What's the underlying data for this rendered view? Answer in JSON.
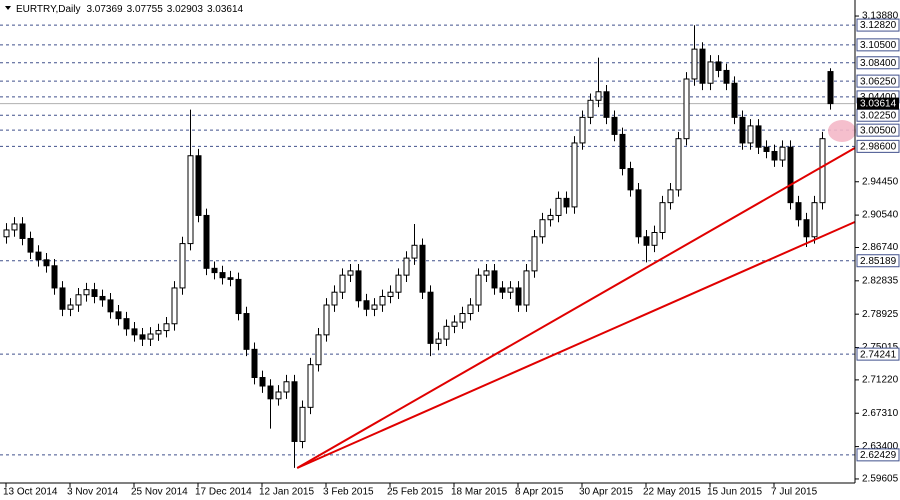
{
  "chart_data": {
    "type": "candlestick",
    "title": "EURTRY,Daily",
    "xlim": [
      -0.75,
      106.125
    ],
    "ylim": [
      2.5913,
      3.1576
    ],
    "xticks": [
      {
        "value": 0,
        "label": "13 Oct 2014"
      },
      {
        "value": 8,
        "label": "3 Nov 2014"
      },
      {
        "value": 16,
        "label": "25 Nov 2014"
      },
      {
        "value": 24,
        "label": "17 Dec 2014"
      },
      {
        "value": 32,
        "label": "12 Jan 2015"
      },
      {
        "value": 40,
        "label": "3 Feb 2015"
      },
      {
        "value": 48,
        "label": "25 Feb 2015"
      },
      {
        "value": 56,
        "label": "18 Mar 2015"
      },
      {
        "value": 64,
        "label": "8 Apr 2015"
      },
      {
        "value": 72,
        "label": "30 Apr 2015"
      },
      {
        "value": 80,
        "label": "22 May 2015"
      },
      {
        "value": 88,
        "label": "15 Jun 2015"
      },
      {
        "value": 96,
        "label": "7 Jul 2015"
      }
    ],
    "yticks": [
      {
        "value": 3.1388,
        "label": "3.13880"
      },
      {
        "value": 2.9445,
        "label": "2.94450"
      },
      {
        "value": 2.9054,
        "label": "2.90540"
      },
      {
        "value": 2.8674,
        "label": "2.86740"
      },
      2.82835,
      2.78925,
      2.75015,
      {
        "value": 2.7122,
        "label": "2.71220"
      },
      {
        "value": 2.6731,
        "label": "2.67310"
      },
      {
        "value": 2.634,
        "label": "2.63400"
      },
      2.59605
    ],
    "levels": [
      {
        "value": 3.1282,
        "label": "3.12820"
      },
      {
        "value": 3.105,
        "label": "3.10500"
      },
      {
        "value": 3.084,
        "label": "3.08400"
      },
      {
        "value": 3.0625,
        "label": "3.06250"
      },
      {
        "value": 3.044,
        "label": "3.04400"
      },
      {
        "value": 3.0225,
        "label": "3.02250"
      },
      {
        "value": 3.005,
        "label": "3.00500"
      },
      {
        "value": 2.986,
        "label": "2.98600"
      },
      2.85189,
      2.74241,
      2.62429
    ],
    "level_color": "#40508c",
    "bull_color": "#ffffff",
    "bear_color": "#000000",
    "candles": {
      "open": [
        2.88,
        2.888,
        2.895,
        2.878,
        2.862,
        2.853,
        2.846,
        2.82,
        2.795,
        2.8,
        2.812,
        2.818,
        2.81,
        2.806,
        2.792,
        2.784,
        2.772,
        2.765,
        2.76,
        2.766,
        2.77,
        2.778,
        2.82,
        2.872,
        2.975,
        2.905,
        2.843,
        2.838,
        2.832,
        2.83,
        2.79,
        2.748,
        2.715,
        2.705,
        2.69,
        2.698,
        2.71,
        2.64,
        2.68,
        2.73,
        2.765,
        2.8,
        2.815,
        2.835,
        2.84,
        2.805,
        2.795,
        2.8,
        2.81,
        2.815,
        2.835,
        2.855,
        2.87,
        2.815,
        2.755,
        2.76,
        2.775,
        2.78,
        2.79,
        2.8,
        2.835,
        2.84,
        2.82,
        2.815,
        2.82,
        2.8,
        2.84,
        2.88,
        2.9,
        2.905,
        2.925,
        2.915,
        2.99,
        3.02,
        3.04,
        3.05,
        3.02,
        3.0,
        2.96,
        2.935,
        2.88,
        2.87,
        2.885,
        2.92,
        2.935,
        2.995,
        3.065,
        3.1,
        3.06,
        3.085,
        3.075,
        3.06,
        3.02,
        2.99,
        3.01,
        2.985,
        2.98,
        2.97,
        2.985,
        2.92,
        2.9,
        2.88,
        2.92,
        3.07369
      ],
      "high": [
        2.896,
        2.903,
        2.903,
        2.886,
        2.87,
        2.861,
        2.854,
        2.828,
        2.808,
        2.82,
        2.826,
        2.826,
        2.818,
        2.814,
        2.8,
        2.792,
        2.78,
        2.773,
        2.774,
        2.778,
        2.786,
        2.828,
        2.88,
        3.029,
        2.983,
        2.913,
        2.851,
        2.846,
        2.84,
        2.838,
        2.798,
        2.756,
        2.723,
        2.713,
        2.706,
        2.718,
        2.718,
        2.688,
        2.738,
        2.773,
        2.808,
        2.823,
        2.843,
        2.848,
        2.848,
        2.813,
        2.808,
        2.818,
        2.823,
        2.843,
        2.863,
        2.895,
        2.878,
        2.823,
        2.768,
        2.783,
        2.788,
        2.798,
        2.808,
        2.843,
        2.848,
        2.848,
        2.828,
        2.828,
        2.828,
        2.848,
        2.888,
        2.908,
        2.913,
        2.933,
        2.933,
        2.998,
        3.028,
        3.048,
        3.09,
        3.058,
        3.028,
        3.008,
        2.968,
        2.943,
        2.888,
        2.893,
        2.928,
        2.943,
        3.003,
        3.073,
        3.128,
        3.108,
        3.093,
        3.093,
        3.083,
        3.068,
        3.028,
        3.018,
        3.018,
        2.993,
        2.988,
        2.993,
        2.993,
        2.928,
        2.908,
        2.928,
        3.003,
        3.07755
      ],
      "low": [
        2.872,
        2.88,
        2.87,
        2.854,
        2.845,
        2.838,
        2.812,
        2.787,
        2.787,
        2.792,
        2.804,
        2.802,
        2.798,
        2.784,
        2.776,
        2.764,
        2.757,
        2.752,
        2.752,
        2.758,
        2.762,
        2.77,
        2.812,
        2.864,
        2.897,
        2.835,
        2.83,
        2.824,
        2.822,
        2.782,
        2.74,
        2.707,
        2.697,
        2.655,
        2.682,
        2.69,
        2.609,
        2.632,
        2.672,
        2.722,
        2.757,
        2.792,
        2.807,
        2.827,
        2.797,
        2.787,
        2.787,
        2.792,
        2.802,
        2.807,
        2.827,
        2.847,
        2.807,
        2.74,
        2.747,
        2.752,
        2.767,
        2.772,
        2.782,
        2.792,
        2.827,
        2.812,
        2.807,
        2.807,
        2.792,
        2.792,
        2.832,
        2.872,
        2.892,
        2.897,
        2.907,
        2.907,
        2.982,
        3.012,
        3.032,
        3.012,
        2.992,
        2.952,
        2.927,
        2.872,
        2.85,
        2.862,
        2.877,
        2.912,
        2.927,
        2.987,
        3.057,
        3.052,
        3.052,
        3.067,
        3.052,
        3.012,
        2.982,
        2.982,
        2.977,
        2.972,
        2.962,
        2.962,
        2.912,
        2.892,
        2.868,
        2.872,
        2.912,
        3.02903
      ],
      "close": [
        2.888,
        2.895,
        2.878,
        2.862,
        2.853,
        2.846,
        2.82,
        2.795,
        2.8,
        2.812,
        2.818,
        2.81,
        2.806,
        2.792,
        2.784,
        2.772,
        2.765,
        2.76,
        2.766,
        2.77,
        2.778,
        2.82,
        2.872,
        2.975,
        2.905,
        2.843,
        2.838,
        2.832,
        2.83,
        2.79,
        2.748,
        2.715,
        2.705,
        2.69,
        2.698,
        2.71,
        2.64,
        2.68,
        2.73,
        2.765,
        2.8,
        2.815,
        2.835,
        2.84,
        2.805,
        2.795,
        2.8,
        2.81,
        2.815,
        2.835,
        2.855,
        2.87,
        2.815,
        2.755,
        2.76,
        2.775,
        2.78,
        2.79,
        2.8,
        2.835,
        2.84,
        2.82,
        2.815,
        2.82,
        2.8,
        2.84,
        2.88,
        2.9,
        2.905,
        2.925,
        2.915,
        2.99,
        3.02,
        3.04,
        3.05,
        3.02,
        3.0,
        2.96,
        2.935,
        2.88,
        2.87,
        2.885,
        2.92,
        2.935,
        2.995,
        3.065,
        3.1,
        3.06,
        3.085,
        3.075,
        3.06,
        3.02,
        2.99,
        3.01,
        2.985,
        2.98,
        2.97,
        2.985,
        2.92,
        2.9,
        2.88,
        2.92,
        2.995,
        3.03614
      ]
    },
    "trendlines": [
      {
        "x": [
          36.4,
          106.1
        ],
        "y": [
          2.6089,
          2.9841
        ],
        "color": "#e00000"
      },
      {
        "x": [
          36.4,
          106.1
        ],
        "y": [
          2.6089,
          2.8973
        ],
        "color": "#e00000"
      }
    ]
  }
}
